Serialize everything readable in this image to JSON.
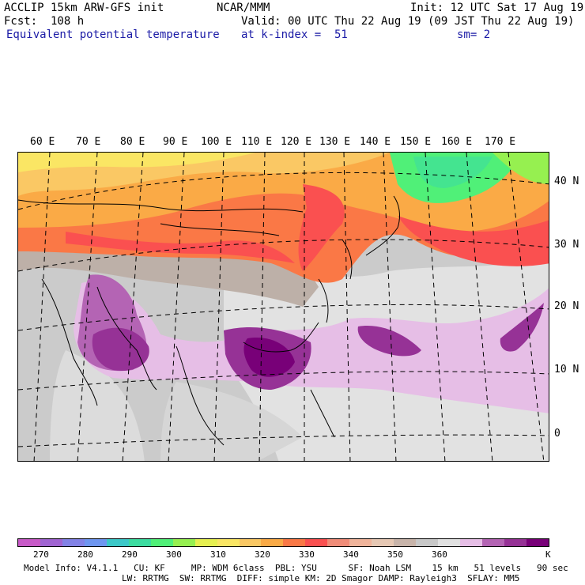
{
  "header": {
    "line1_left": "ACCLIP 15km ARW-GFS init",
    "line1_center": "NCAR/MMM",
    "line1_right": "Init: 12 UTC Sat 17 Aug 19",
    "line2_left": "Fcst:  108 h",
    "line2_right": "Valid: 00 UTC Thu 22 Aug 19 (09 JST Thu 22 Aug 19)",
    "line3_left": "Equivalent potential temperature",
    "line3_mid": "at k-index =  51",
    "line3_right": "sm= 2"
  },
  "map": {
    "lon_labels": [
      "60 E",
      "70 E",
      "80 E",
      "90 E",
      "100 E",
      "110 E",
      "120 E",
      "130 E",
      "140 E",
      "150 E",
      "160 E",
      "170 E"
    ],
    "lat_labels": [
      "40 N",
      "30 N",
      "20 N",
      "10 N",
      "0"
    ]
  },
  "colorbar": {
    "colors": [
      "#c85ac8",
      "#a064d2",
      "#8282e6",
      "#6e96f0",
      "#3cc8c8",
      "#3cdca0",
      "#50f078",
      "#96f050",
      "#e6f050",
      "#fae664",
      "#fac864",
      "#faaa46",
      "#fa7846",
      "#fa5050",
      "#f08c78",
      "#f0b49b",
      "#e6c8b4",
      "#c8b4aa",
      "#c8c8c8",
      "#e1e1e1",
      "#e6bee6",
      "#b464b4",
      "#963296",
      "#780078"
    ],
    "labels": [
      "270",
      "280",
      "290",
      "300",
      "310",
      "320",
      "330",
      "340",
      "350",
      "360"
    ],
    "unit": "K"
  },
  "footer": {
    "line1": "Model Info: V4.1.1   CU: KF     MP: WDM 6class  PBL: YSU      SF: Noah LSM    15 km   51 levels   90 sec",
    "line2": "LW: RRTMG  SW: RRTMG  DIFF: simple KM: 2D Smagor DAMP: Rayleigh3  SFLAY: MM5"
  }
}
